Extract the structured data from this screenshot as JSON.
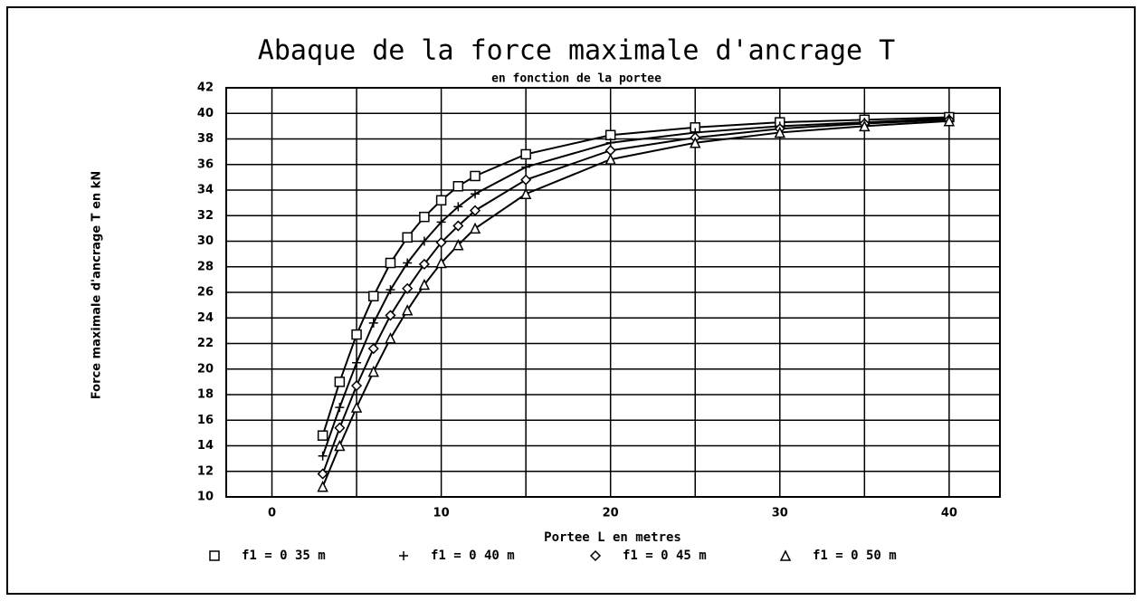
{
  "chart_data": {
    "type": "line",
    "title": "Abaque de la force maximale d'ancrage T",
    "subtitle": "en fonction de la portee",
    "x_label": "Portee  L en metres",
    "y_label": "Force maximale d'ancrage T en kN",
    "x": [
      3,
      4,
      5,
      6,
      7,
      8,
      9,
      10,
      11,
      12,
      15,
      20,
      25,
      30,
      35,
      40
    ],
    "series": [
      {
        "name": "f1 = 0 35 m",
        "marker": "square",
        "color": "#000000",
        "values": [
          14.8,
          19.0,
          22.7,
          25.7,
          28.3,
          30.3,
          31.9,
          33.2,
          34.3,
          35.1,
          36.8,
          38.3,
          38.9,
          39.3,
          39.5,
          39.7
        ]
      },
      {
        "name": "f1 = 0 40 m",
        "marker": "plus",
        "color": "#000000",
        "values": [
          13.2,
          17.0,
          20.5,
          23.6,
          26.2,
          28.3,
          30.0,
          31.5,
          32.7,
          33.7,
          35.8,
          37.7,
          38.5,
          39.0,
          39.3,
          39.6
        ]
      },
      {
        "name": "f1 = 0 45 m",
        "marker": "diamond",
        "color": "#000000",
        "values": [
          11.8,
          15.4,
          18.7,
          21.6,
          24.2,
          26.3,
          28.2,
          29.9,
          31.2,
          32.4,
          34.8,
          37.1,
          38.1,
          38.8,
          39.2,
          39.5
        ]
      },
      {
        "name": "f1 = 0 50 m",
        "marker": "triangle",
        "color": "#000000",
        "values": [
          10.8,
          14.0,
          17.0,
          19.8,
          22.4,
          24.6,
          26.6,
          28.3,
          29.7,
          31.0,
          33.7,
          36.4,
          37.7,
          38.5,
          39.0,
          39.4
        ]
      }
    ],
    "xlim": [
      -2.7,
      43
    ],
    "xticks": [
      0,
      10,
      20,
      30,
      40
    ],
    "xminor": [
      5,
      15,
      25,
      35
    ],
    "ylim": [
      10,
      42
    ],
    "yticks": [
      10,
      12,
      14,
      16,
      18,
      20,
      22,
      24,
      26,
      28,
      30,
      32,
      34,
      36,
      38,
      40,
      42
    ],
    "grid": true,
    "legend": "bottom"
  }
}
